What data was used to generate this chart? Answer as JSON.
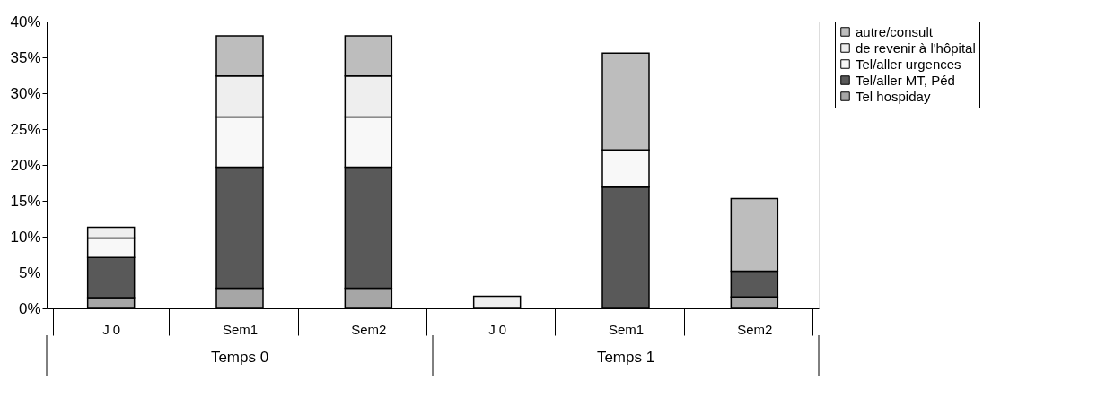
{
  "chart_data": {
    "type": "bar",
    "stacked": true,
    "categories": [
      "J 0",
      "Sem1",
      "Sem2",
      "J 0",
      "Sem1",
      "Sem2"
    ],
    "annotations": [
      {
        "text": "Temps 0"
      },
      {
        "text": "Temps 1"
      }
    ],
    "series": [
      {
        "name": " Tel hospiday",
        "color": "#a6a6a6",
        "values": [
          1.5,
          2.8,
          2.8,
          null,
          null,
          1.6
        ]
      },
      {
        "name": "Tel/aller MT, Péd",
        "color": "#595959",
        "values": [
          5.6,
          16.9,
          16.9,
          null,
          16.9,
          3.6
        ]
      },
      {
        "name": "Tel/aller urgences",
        "color": "#f8f8f8",
        "values": [
          2.7,
          7.0,
          7.0,
          null,
          5.2,
          null
        ]
      },
      {
        "name": "de revenir à l'hôpital",
        "color": "#eeeeee",
        "values": [
          1.5,
          5.7,
          5.7,
          1.7,
          null,
          null
        ]
      },
      {
        "name": "autre/consult",
        "color": "#bdbdbd",
        "values": [
          null,
          5.6,
          5.6,
          null,
          13.5,
          10.1
        ]
      }
    ],
    "ylim": [
      0,
      40
    ],
    "yticks": [
      {
        "value": 0,
        "label": "0%"
      },
      {
        "value": 5,
        "label": "5%"
      },
      {
        "value": 10,
        "label": "10%"
      },
      {
        "value": 15,
        "label": "15%"
      },
      {
        "value": 20,
        "label": "20%"
      },
      {
        "value": 25,
        "label": "25%"
      },
      {
        "value": 30,
        "label": "30%"
      },
      {
        "value": 35,
        "label": "35%"
      },
      {
        "value": 40,
        "label": "40%"
      }
    ],
    "legend": "top right",
    "grid": false
  }
}
